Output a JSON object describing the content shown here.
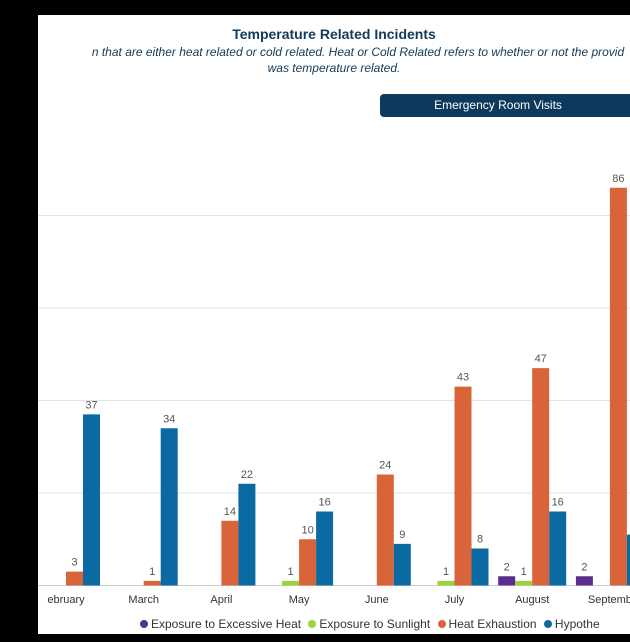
{
  "header": {
    "title": "Temperature Related Incidents",
    "subtitle_line1": "n that are either heat related or cold related. Heat or Cold Related refers to whether or not the provid",
    "subtitle_line2": "was temperature related.",
    "tab_label": "Emergency Room Visits"
  },
  "colors": {
    "excessive_heat": "#5b2d8e",
    "sunlight": "#9bd13a",
    "heat_exhaustion": "#d9643a",
    "hypothermia": "#0a6aa1",
    "grid": "#e3e3e3",
    "tab": "#0d3a5c"
  },
  "chart_data": {
    "type": "bar",
    "categories": [
      "ebruary",
      "March",
      "April",
      "May",
      "June",
      "July",
      "August",
      "Septemb"
    ],
    "series": [
      {
        "name": "Exposure to Excessive Heat",
        "values": [
          null,
          null,
          null,
          null,
          null,
          null,
          2,
          2
        ]
      },
      {
        "name": "Exposure to Sunlight",
        "values": [
          null,
          null,
          null,
          1,
          null,
          1,
          1,
          null
        ]
      },
      {
        "name": "Heat Exhaustion",
        "values": [
          3,
          1,
          14,
          10,
          24,
          43,
          47,
          86
        ]
      },
      {
        "name": "Hypothe",
        "values": [
          37,
          34,
          22,
          16,
          9,
          8,
          16,
          11
        ]
      }
    ],
    "data_labels": [
      [
        null,
        null,
        null,
        null,
        null,
        null,
        "2",
        "2"
      ],
      [
        null,
        null,
        null,
        "1",
        null,
        "1",
        "1",
        null
      ],
      [
        "3",
        "1",
        "14",
        "10",
        "24",
        "43",
        "47",
        "86"
      ],
      [
        "37",
        "34",
        "22",
        "16",
        "9",
        "8",
        "16",
        null
      ]
    ],
    "ylim": [
      0,
      90
    ],
    "grid": true,
    "legend_position": "bottom"
  }
}
